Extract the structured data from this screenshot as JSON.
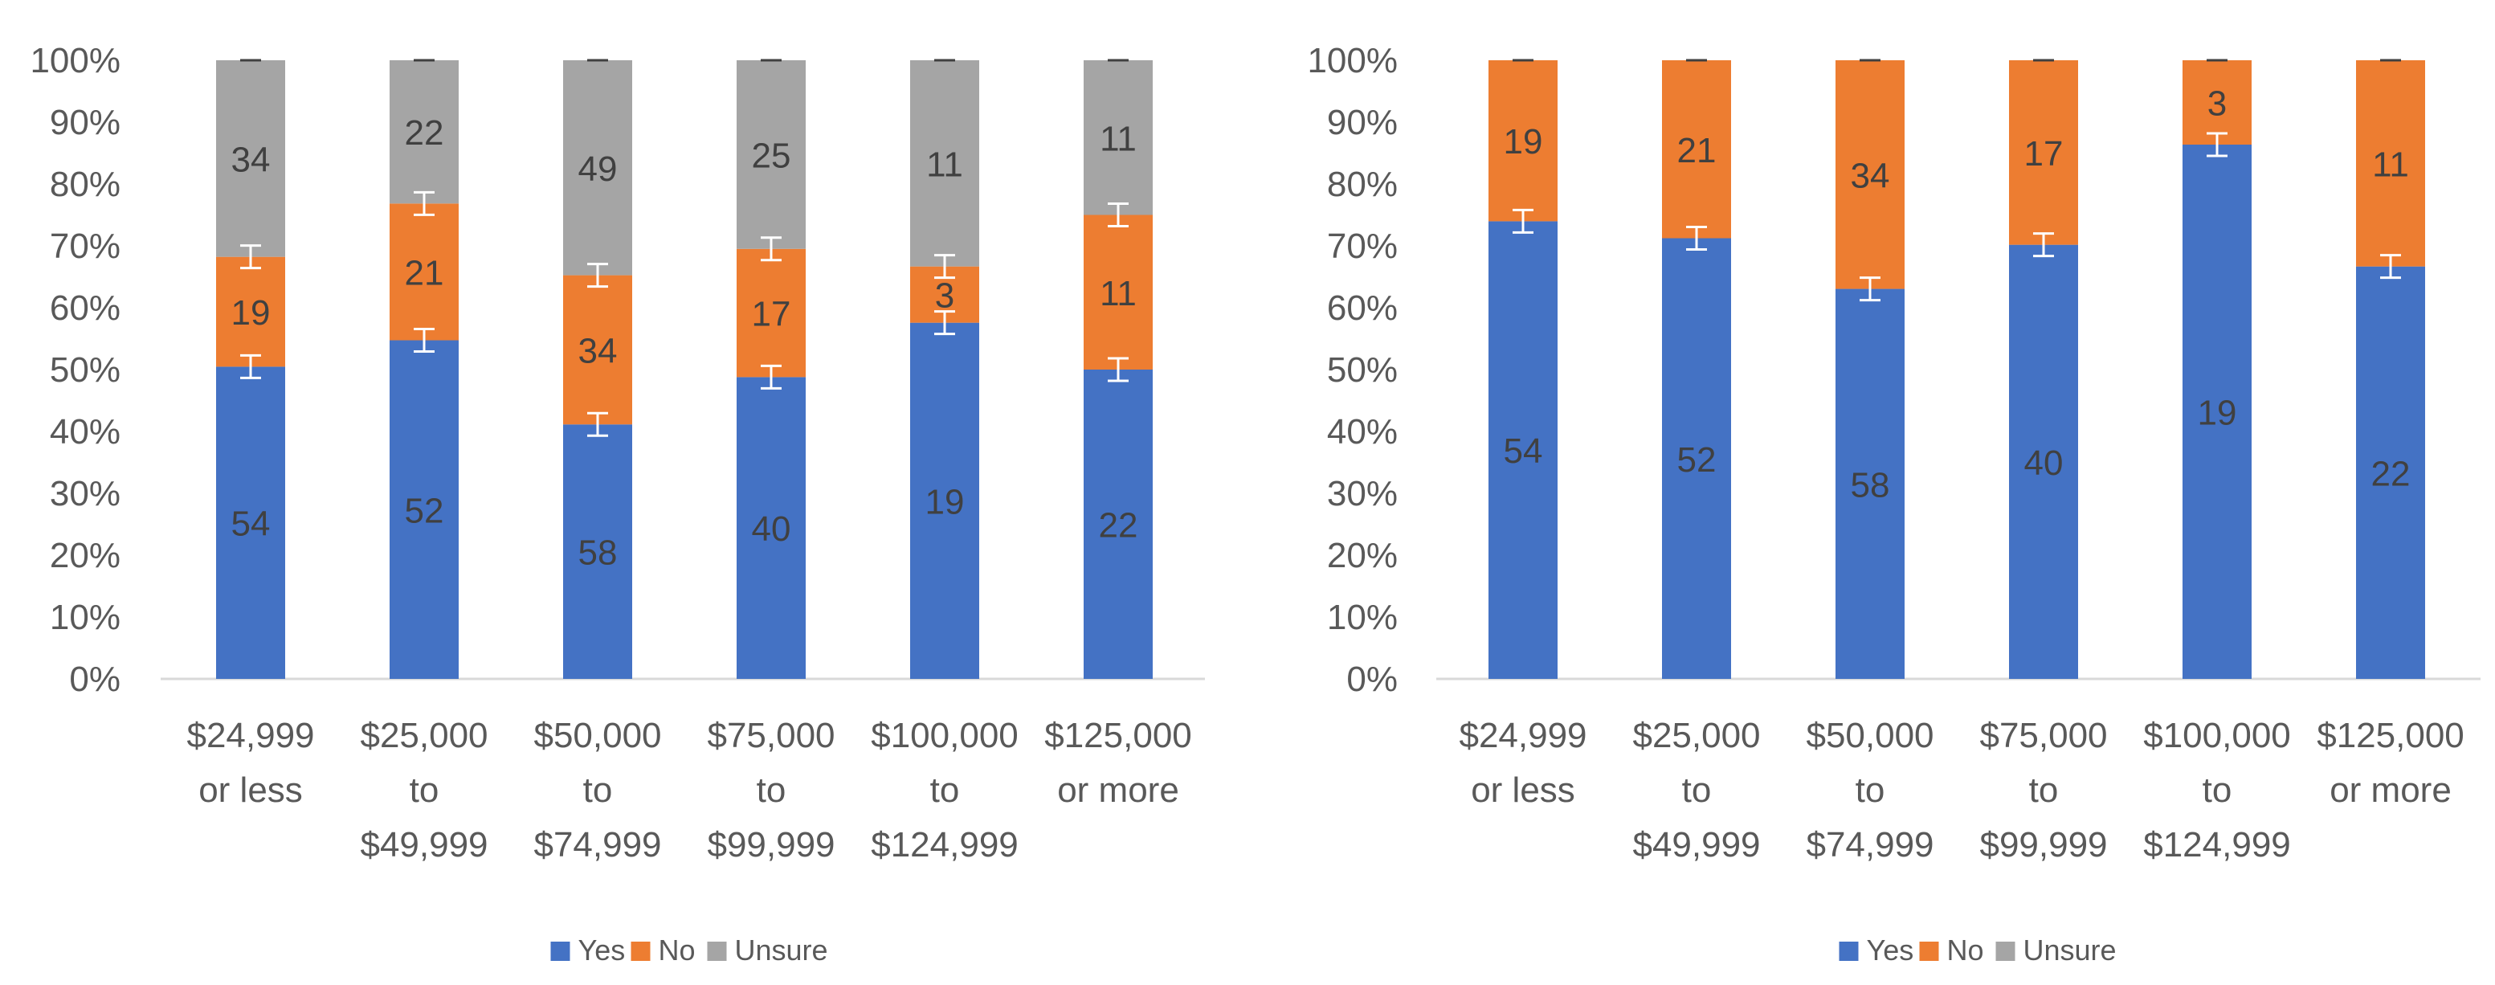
{
  "colors": {
    "yes": "#4472C4",
    "no": "#ED7D31",
    "unsure": "#A5A5A5",
    "axis_text": "#595959",
    "data_label": "#404040",
    "axis_line": "#D9D9D9",
    "error_bar": "#FFFFFF"
  },
  "chart_data": [
    {
      "type": "bar",
      "stacked": "percent",
      "categories": [
        [
          "$24,999",
          "or less"
        ],
        [
          "$25,000",
          "to",
          "$49,999"
        ],
        [
          "$50,000",
          "to",
          "$74,999"
        ],
        [
          "$75,000",
          "to",
          "$99,999"
        ],
        [
          "$100,000",
          "to",
          "$124,999"
        ],
        [
          "$125,000",
          "or more"
        ]
      ],
      "series": [
        {
          "name": "Yes",
          "key": "yes",
          "values": [
            54,
            52,
            58,
            40,
            19,
            22
          ]
        },
        {
          "name": "No",
          "key": "no",
          "values": [
            19,
            21,
            34,
            17,
            3,
            11
          ]
        },
        {
          "name": "Unsure",
          "key": "unsure",
          "values": [
            34,
            22,
            49,
            25,
            11,
            11
          ]
        }
      ],
      "error_bars": true,
      "ylim": [
        0,
        100
      ],
      "yticks": [
        "0%",
        "10%",
        "20%",
        "30%",
        "40%",
        "50%",
        "60%",
        "70%",
        "80%",
        "90%",
        "100%"
      ],
      "legend": [
        "Yes",
        "No",
        "Unsure"
      ],
      "legend_position": "bottom",
      "title": "",
      "xlabel": "",
      "ylabel": ""
    },
    {
      "type": "bar",
      "stacked": "percent",
      "categories": [
        [
          "$24,999",
          "or less"
        ],
        [
          "$25,000",
          "to",
          "$49,999"
        ],
        [
          "$50,000",
          "to",
          "$74,999"
        ],
        [
          "$75,000",
          "to",
          "$99,999"
        ],
        [
          "$100,000",
          "to",
          "$124,999"
        ],
        [
          "$125,000",
          "or more"
        ]
      ],
      "series": [
        {
          "name": "Yes",
          "key": "yes",
          "values": [
            54,
            52,
            58,
            40,
            19,
            22
          ]
        },
        {
          "name": "No",
          "key": "no",
          "values": [
            19,
            21,
            34,
            17,
            3,
            11
          ]
        }
      ],
      "error_bars": true,
      "ylim": [
        0,
        100
      ],
      "yticks": [
        "0%",
        "10%",
        "20%",
        "30%",
        "40%",
        "50%",
        "60%",
        "70%",
        "80%",
        "90%",
        "100%"
      ],
      "legend": [
        "Yes",
        "No",
        "Unsure"
      ],
      "legend_position": "bottom",
      "title": "",
      "xlabel": "",
      "ylabel": ""
    }
  ]
}
